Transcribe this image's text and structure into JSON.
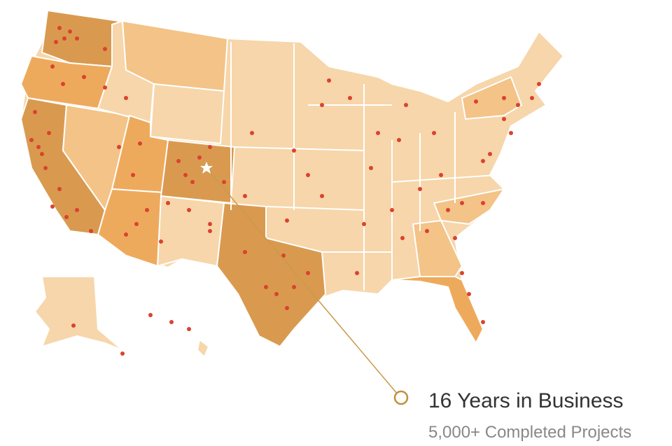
{
  "headline": "16 Years in Business",
  "subline": "5,000+ Completed Projects"
}
